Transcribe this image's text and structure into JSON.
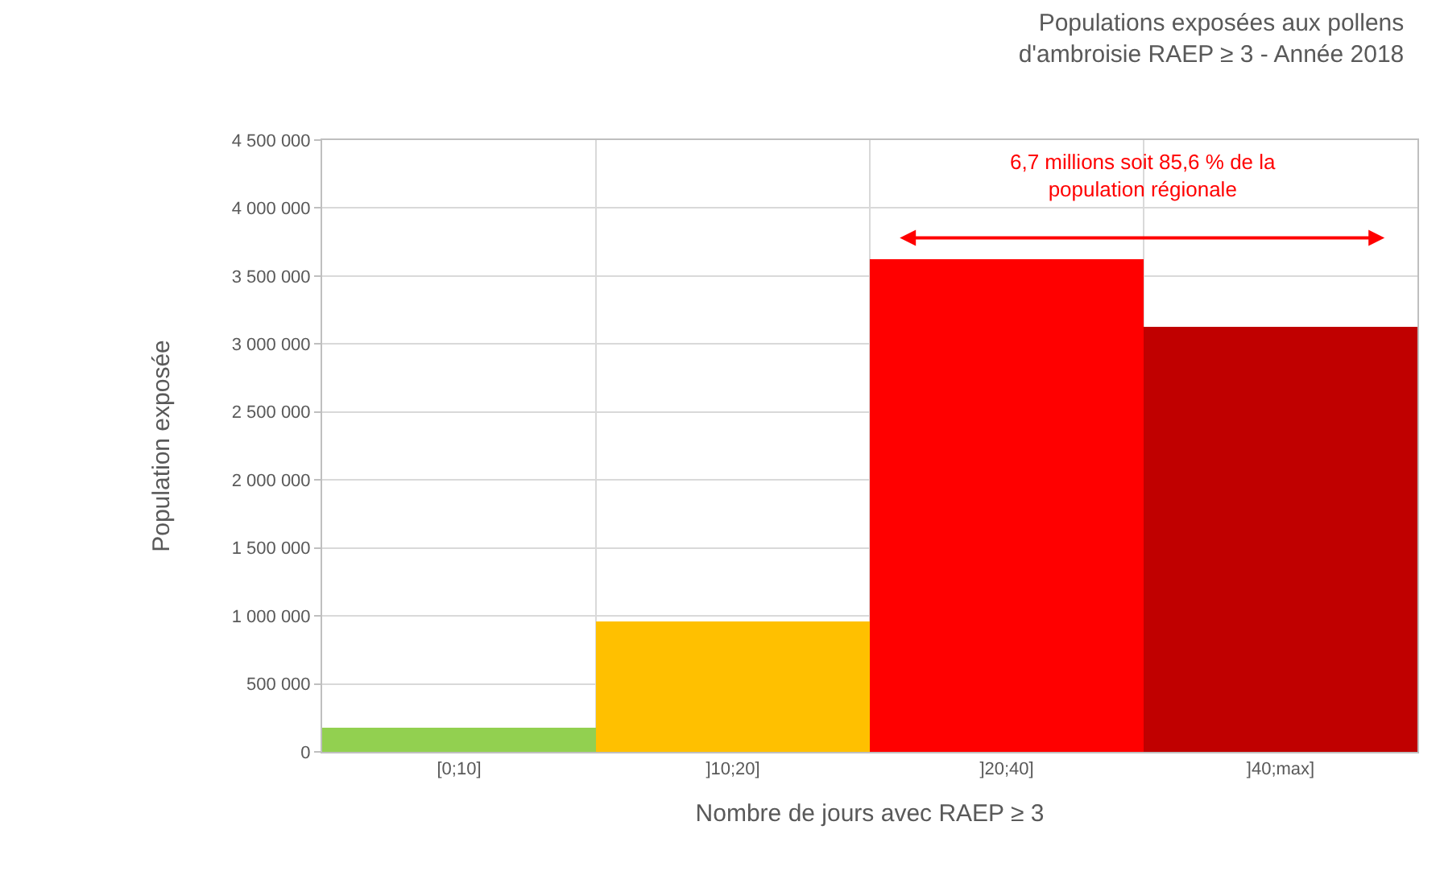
{
  "chart_data": {
    "type": "bar",
    "title": "Populations exposées aux pollens\nd'ambroisie RAEP ≥ 3 - Année 2018",
    "xlabel": "Nombre de jours avec RAEP ≥ 3",
    "ylabel": "Population exposée",
    "categories": [
      "[0;10]",
      "]10;20]",
      "]20;40]",
      "]40;max]"
    ],
    "values": [
      180000,
      960000,
      3620000,
      3130000
    ],
    "colors": [
      "#92d050",
      "#ffc000",
      "#ff0000",
      "#c00000"
    ],
    "ylim": [
      0,
      4500000
    ],
    "yticks": [
      0,
      {
        "value": 500000,
        "label": "500 000"
      },
      {
        "value": 1000000,
        "label": "1 000 000"
      },
      {
        "value": 1500000,
        "label": "1 500 000"
      },
      {
        "value": 2000000,
        "label": "2 000 000"
      },
      {
        "value": 2500000,
        "label": "2 500 000"
      },
      {
        "value": 3000000,
        "label": "3 000 000"
      },
      {
        "value": 3500000,
        "label": "3 500 000"
      },
      {
        "value": 4000000,
        "label": "4 000 000"
      },
      {
        "value": 4500000,
        "label": "4 500 000"
      }
    ],
    "grid": true,
    "annotations": [
      "6,7 millions soit 85,6 % de la\npopulation régionale"
    ]
  }
}
